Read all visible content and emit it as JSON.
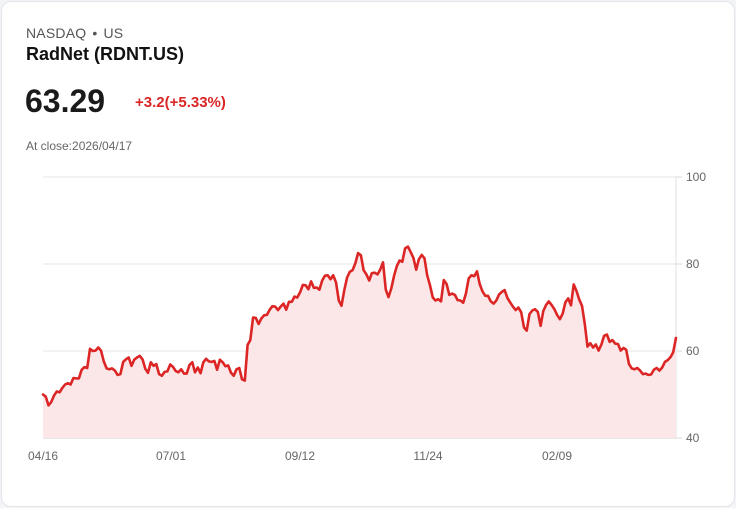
{
  "header": {
    "exchange": "NASDAQ",
    "separator": "•",
    "market": "US",
    "title": "RadNet (RDNT.US)",
    "price": "63.29",
    "change": "+3.2(+5.33%)",
    "close_label": "At close:2026/04/17"
  },
  "colors": {
    "line": "#dc2626",
    "fill": "#fbe7e8",
    "positive": "#dc2626"
  },
  "chart_data": {
    "type": "area",
    "title": "RadNet (RDNT.US)",
    "xlabel": "",
    "ylabel": "",
    "ylim": [
      40,
      100
    ],
    "y_ticks": [
      100,
      80,
      60,
      40
    ],
    "x_tick_labels": [
      "04/16",
      "07/01",
      "09/12",
      "11/24",
      "02/09"
    ],
    "grid": true,
    "y_axis_position": "right",
    "values": [
      50,
      49.5,
      47.5,
      48.3,
      49.8,
      50.7,
      50.5,
      51.5,
      52.3,
      52.6,
      52.3,
      53.8,
      53.7,
      53.7,
      55.7,
      56.3,
      56.1,
      60.5,
      60,
      60.1,
      60.8,
      60.1,
      57.6,
      56,
      55.8,
      56,
      55.5,
      54.5,
      54.7,
      57.5,
      58.1,
      58.5,
      56.6,
      58,
      58.5,
      58.9,
      58.1,
      55.9,
      55,
      57.4,
      56.6,
      57,
      54.7,
      54.3,
      55.2,
      55.3,
      56.9,
      56.4,
      55.4,
      55.1,
      55.8,
      54.8,
      54.8,
      56.8,
      57.4,
      55.1,
      56.2,
      54.9,
      57.4,
      58.2,
      57.6,
      57.5,
      57.7,
      55.7,
      58,
      57.4,
      56.5,
      56.7,
      55,
      54.3,
      55.8,
      56.1,
      53.5,
      53.2,
      61.4,
      62.5,
      67.7,
      67.6,
      66.2,
      67.5,
      68.2,
      68.3,
      69.5,
      70.3,
      70.2,
      69.4,
      70.2,
      70.9,
      69.5,
      71.3,
      71.3,
      72.5,
      72.3,
      73.5,
      75.2,
      75.1,
      74.2,
      76,
      74.5,
      74.6,
      74.1,
      76.2,
      77.3,
      77.4,
      76.5,
      77.4,
      75.8,
      71.6,
      70.4,
      74,
      76.9,
      78.2,
      78.6,
      80.2,
      82.5,
      82,
      78.6,
      77.6,
      76.2,
      77.9,
      78,
      77.6,
      78.7,
      80.4,
      74.1,
      72.4,
      74.4,
      77.3,
      79.5,
      80.8,
      80.5,
      83.6,
      84,
      82.8,
      81.4,
      78.7,
      81.1,
      82.1,
      81.3,
      77.4,
      75.1,
      72.3,
      71.6,
      71.9,
      71.4,
      76.3,
      75.4,
      72.9,
      73.2,
      72.9,
      71.7,
      71.6,
      71.1,
      73.2,
      76.7,
      77.4,
      77.2,
      78.3,
      75.4,
      73.7,
      72.7,
      72.7,
      71.4,
      70.9,
      71.6,
      73,
      73.6,
      74,
      72.2,
      71.2,
      70.2,
      69.4,
      70,
      68.9,
      65.4,
      64.7,
      68.5,
      69.3,
      69.6,
      69,
      65.8,
      69.2,
      70.6,
      71.4,
      70.6,
      69.6,
      68.3,
      67.3,
      68.6,
      71.2,
      72.1,
      70.5,
      75.3,
      73.8,
      71.8,
      70.4,
      66.2,
      61,
      61.8,
      60.8,
      61.5,
      60.1,
      61.5,
      63.5,
      63.8,
      62.1,
      62.5,
      61.7,
      61.6,
      60.1,
      60.7,
      60.3,
      57,
      56,
      55.8,
      56.1,
      55.5,
      54.7,
      54.8,
      54.5,
      54.6,
      55.7,
      56.1,
      55.5,
      56.2,
      57.5,
      57.9,
      58.6,
      59.7,
      63
    ]
  }
}
